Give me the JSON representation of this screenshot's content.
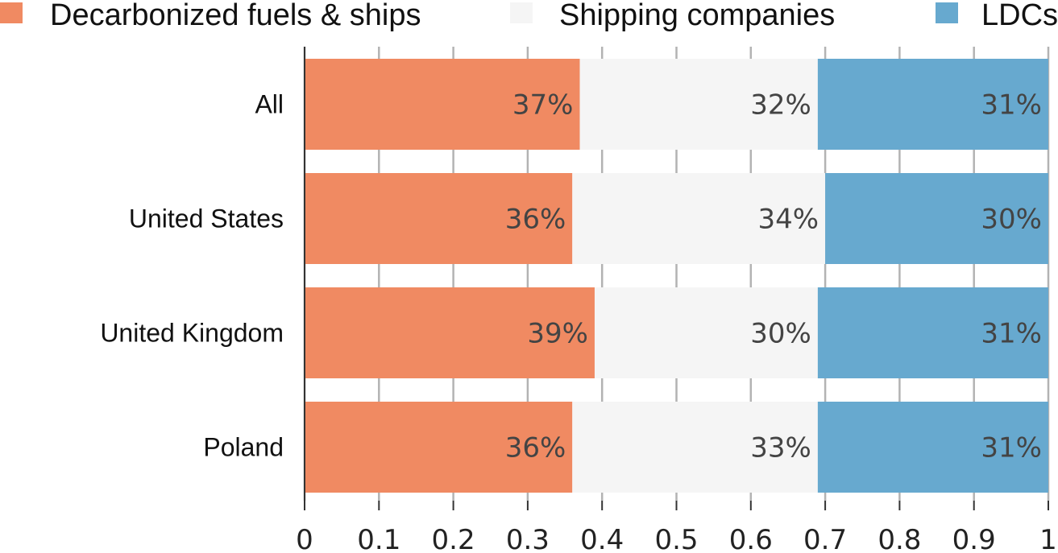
{
  "chart_data": {
    "type": "bar",
    "orientation": "horizontal",
    "stacked": true,
    "categories": [
      "All",
      "United States",
      "United Kingdom",
      "Poland"
    ],
    "series": [
      {
        "name": "Decarbonized fuels & ships",
        "color": "#F08A62",
        "values": [
          0.37,
          0.36,
          0.39,
          0.36
        ],
        "labels": [
          "37%",
          "36%",
          "39%",
          "36%"
        ]
      },
      {
        "name": "Shipping companies",
        "color": "#F5F5F5",
        "values": [
          0.32,
          0.34,
          0.3,
          0.33
        ],
        "labels": [
          "32%",
          "34%",
          "30%",
          "33%"
        ]
      },
      {
        "name": "LDCs",
        "color": "#67A9CF",
        "values": [
          0.31,
          0.3,
          0.31,
          0.31
        ],
        "labels": [
          "31%",
          "30%",
          "31%",
          "31%"
        ]
      }
    ],
    "xlim": [
      0,
      1
    ],
    "xticks": [
      "0",
      "0.1",
      "0.2",
      "0.3",
      "0.4",
      "0.5",
      "0.6",
      "0.7",
      "0.8",
      "0.9",
      "1"
    ],
    "grid": true,
    "legend_position": "top"
  }
}
